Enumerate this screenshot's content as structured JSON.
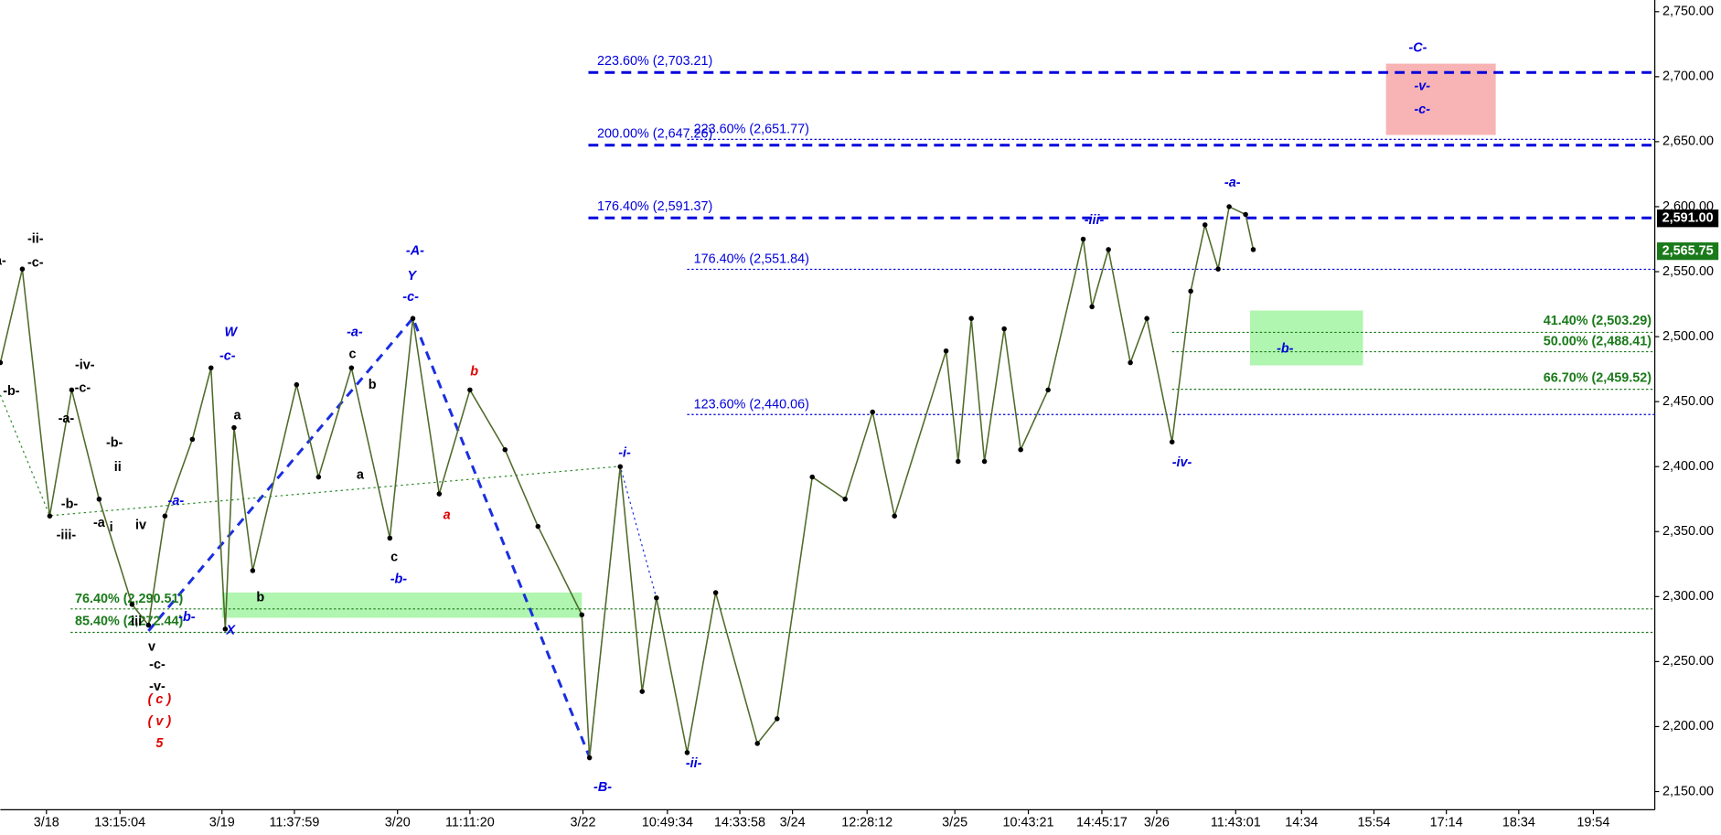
{
  "chart_data": {
    "type": "line",
    "x": [
      0,
      5,
      11.25,
      16.25,
      22.5,
      30,
      33.75,
      37.5,
      43.75,
      48,
      51.25,
      53.25,
      57.5,
      67.5,
      72.5,
      80,
      88.75,
      94,
      100,
      107,
      115,
      122.5,
      132.5,
      134.25,
      141.25,
      146.25,
      149.5,
      156.5,
      163,
      172.5,
      177,
      185,
      192.5,
      198.75,
      203.75,
      215.5,
      218.25,
      221.25,
      224.25,
      228.75,
      232.5,
      238.75,
      246.75,
      248.75,
      252.5,
      257.5,
      261.25,
      267,
      271.25,
      274.5,
      277.5,
      280,
      283.75,
      285.5
    ],
    "series": [
      {
        "color": "#4f6b2a",
        "values": [
          2480,
          2552,
          2362,
          2459,
          2375,
          2294,
          2278,
          2362,
          2421,
          2476,
          2275,
          2430,
          2320,
          2463,
          2392,
          2476,
          2345,
          2514,
          2379,
          2459,
          2413,
          2354,
          2286,
          2176,
          2400,
          2227,
          2299,
          2180,
          2303,
          2187,
          2206,
          2392,
          2375,
          2442,
          2362,
          2489,
          2404,
          2514,
          2404,
          2506,
          2413,
          2459,
          2575,
          2523,
          2567,
          2480,
          2514,
          2419,
          2535,
          2586,
          2552,
          2600,
          2594,
          2567
        ]
      }
    ],
    "xlim": [
      0,
      377
    ],
    "xticks": [
      {
        "value": 10.5,
        "label": "3/18"
      },
      {
        "value": 27.25,
        "label": "13:15:04"
      },
      {
        "value": 50.5,
        "label": "3/19"
      },
      {
        "value": 67,
        "label": "11:37:59"
      },
      {
        "value": 90.5,
        "label": "3/20"
      },
      {
        "value": 107,
        "label": "11:11:20"
      },
      {
        "value": 132.75,
        "label": "3/22"
      },
      {
        "value": 152,
        "label": "10:49:34"
      },
      {
        "value": 168.5,
        "label": "14:33:58"
      },
      {
        "value": 180.5,
        "label": "3/24"
      },
      {
        "value": 197.5,
        "label": "12:28:12"
      },
      {
        "value": 217.5,
        "label": "3/25"
      },
      {
        "value": 234.25,
        "label": "10:43:21"
      },
      {
        "value": 251,
        "label": "14:45:17"
      },
      {
        "value": 263.5,
        "label": "3/26"
      },
      {
        "value": 281.5,
        "label": "11:43:01"
      },
      {
        "value": 296.5,
        "label": "14:34"
      },
      {
        "value": 313,
        "label": "15:54"
      },
      {
        "value": 329.5,
        "label": "17:14"
      },
      {
        "value": 346,
        "label": "18:34"
      },
      {
        "value": 363,
        "label": "19:54"
      }
    ],
    "ylim": [
      2136,
      2759
    ],
    "yticks": [
      {
        "value": 2150,
        "label": "2,150.00"
      },
      {
        "value": 2200,
        "label": "2,200.00"
      },
      {
        "value": 2250,
        "label": "2,250.00"
      },
      {
        "value": 2300,
        "label": "2,300.00"
      },
      {
        "value": 2350,
        "label": "2,350.00"
      },
      {
        "value": 2400,
        "label": "2,400.00"
      },
      {
        "value": 2450,
        "label": "2,450.00"
      },
      {
        "value": 2500,
        "label": "2,500.00"
      },
      {
        "value": 2550,
        "label": "2,550.00"
      },
      {
        "value": 2600,
        "label": "2,600.00"
      },
      {
        "value": 2650,
        "label": "2,650.00"
      },
      {
        "value": 2700,
        "label": "2,700.00"
      },
      {
        "value": 2750,
        "label": "2,750.00"
      }
    ],
    "levels": [
      {
        "label": "223.60% (2,703.21)",
        "value": 2703.21,
        "color": "#0000dd",
        "style": "dashed"
      },
      {
        "label": "200.00% (2,647.26)",
        "value": 2647.26,
        "color": "#0000dd",
        "style": "dashed"
      },
      {
        "label": "223.60% (2,651.77)",
        "value": 2651.77,
        "color": "#0000dd",
        "style": "dotted"
      },
      {
        "label": "176.40% (2,591.37)",
        "value": 2591.37,
        "color": "#0000dd",
        "style": "dashed"
      },
      {
        "label": "176.40% (2,551.84)",
        "value": 2551.84,
        "color": "#0000dd",
        "style": "dotted"
      },
      {
        "label": "123.60% (2,440.06)",
        "value": 2440.06,
        "color": "#0000dd",
        "style": "dotted"
      },
      {
        "label": "41.40% (2,503.29)",
        "value": 2503.29,
        "color": "#1a7a1a",
        "style": "dotted"
      },
      {
        "label": "50.00% (2,488.41)",
        "value": 2488.41,
        "color": "#1a7a1a",
        "style": "dotted"
      },
      {
        "label": "66.70% (2,459.52)",
        "value": 2459.52,
        "color": "#1a7a1a",
        "style": "dotted"
      },
      {
        "label": "76.40% (2,290.51)",
        "value": 2290.51,
        "color": "#1a7a1a",
        "style": "dotted"
      },
      {
        "label": "85.40% (2,272.44)",
        "value": 2272.44,
        "color": "#1a7a1a",
        "style": "dotted"
      }
    ],
    "price_tags": [
      {
        "value": 2591,
        "label": "2,591.00",
        "color": "#000000"
      },
      {
        "value": 2565.75,
        "label": "2,565.75",
        "color": "#1a7a1a"
      }
    ],
    "annotations": [
      {
        "text": "a-",
        "color": "#000"
      },
      {
        "text": "-ii-",
        "color": "#000"
      },
      {
        "text": "-c-",
        "color": "#000"
      },
      {
        "text": "-b-",
        "color": "#000"
      },
      {
        "text": "-iv-",
        "color": "#000"
      },
      {
        "text": "-c-",
        "color": "#000"
      },
      {
        "text": "-a-",
        "color": "#000"
      },
      {
        "text": "-b-",
        "color": "#000"
      },
      {
        "text": "-iii-",
        "color": "#000"
      },
      {
        "text": "-b-",
        "color": "#000"
      },
      {
        "text": "ii",
        "color": "#000"
      },
      {
        "text": "-a",
        "color": "#000"
      },
      {
        "text": "i",
        "color": "#000"
      },
      {
        "text": "iv",
        "color": "#000"
      },
      {
        "text": "iii",
        "color": "#000"
      },
      {
        "text": "v",
        "color": "#000"
      },
      {
        "text": "-c-",
        "color": "#000"
      },
      {
        "text": "-v-",
        "color": "#000"
      },
      {
        "text": "a",
        "color": "#000"
      },
      {
        "text": "b",
        "color": "#000"
      },
      {
        "text": "c",
        "color": "#000"
      },
      {
        "text": "b",
        "color": "#000"
      },
      {
        "text": "a",
        "color": "#000"
      },
      {
        "text": "c",
        "color": "#000"
      },
      {
        "text": "W",
        "color": "#0000dd"
      },
      {
        "text": "-c-",
        "color": "#0000dd"
      },
      {
        "text": "-a-",
        "color": "#0000dd"
      },
      {
        "text": "-b-",
        "color": "#0000dd"
      },
      {
        "text": "X",
        "color": "#0000dd"
      },
      {
        "text": "-a-",
        "color": "#0000dd"
      },
      {
        "text": "Y",
        "color": "#0000dd"
      },
      {
        "text": "-c-",
        "color": "#0000dd"
      },
      {
        "text": "-A-",
        "color": "#0000dd"
      },
      {
        "text": "-b-",
        "color": "#0000dd"
      },
      {
        "text": "-i-",
        "color": "#0000dd"
      },
      {
        "text": "-ii-",
        "color": "#0000dd"
      },
      {
        "text": "-B-",
        "color": "#0000dd"
      },
      {
        "text": "-iii-",
        "color": "#0000dd"
      },
      {
        "text": "-iv-",
        "color": "#0000dd"
      },
      {
        "text": "-a-",
        "color": "#0000dd"
      },
      {
        "text": "-C-",
        "color": "#0000dd"
      },
      {
        "text": "-v-",
        "color": "#0000dd"
      },
      {
        "text": "-c-",
        "color": "#0000dd"
      },
      {
        "text": "-b-",
        "color": "#0000dd"
      },
      {
        "text": "b",
        "color": "#e00000"
      },
      {
        "text": "a",
        "color": "#e00000"
      },
      {
        "text": "( c )",
        "color": "#e00000"
      },
      {
        "text": "( v )",
        "color": "#e00000"
      },
      {
        "text": "5",
        "color": "#e00000"
      }
    ]
  }
}
